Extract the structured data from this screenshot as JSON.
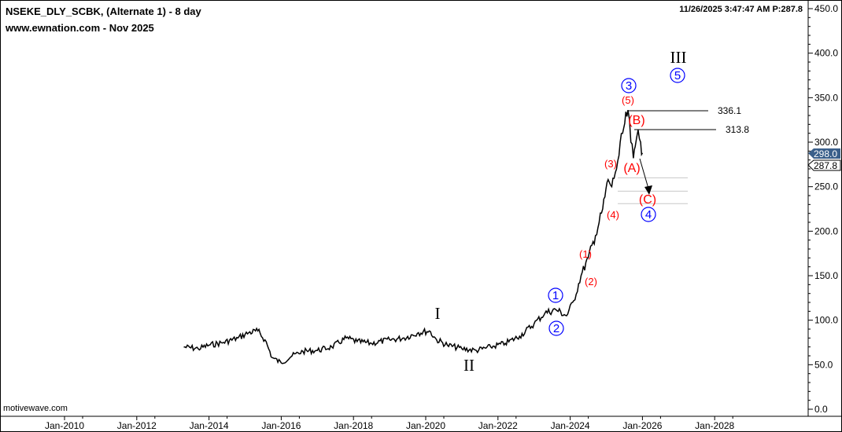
{
  "header": {
    "title": "NSEKE_DLY_SCBK, (Alternate 1) - 8 day",
    "subtitle": "www.ewnation.com  - Nov 2025",
    "timestamp_price": "11/26/2025 3:47:47 AM  P:287.8",
    "watermark": "motivewave.com"
  },
  "colors": {
    "price": "#000000",
    "wave_red": "#ff0000",
    "wave_blue": "#0000ff",
    "last_tag": "#3a5f8a",
    "fib": "#c8c8c8"
  },
  "chart_data": {
    "type": "line",
    "title": "NSEKE_DLY_SCBK, (Alternate 1) - 8 day",
    "y_axis": {
      "position": "right",
      "range": [
        0,
        450
      ],
      "ticks": [
        "0.0",
        "50.0",
        "100.0",
        "150.0",
        "200.0",
        "250.0",
        "300.0",
        "350.0",
        "400.0",
        "450.0"
      ]
    },
    "x_axis": {
      "range": [
        2009.5,
        2029.5
      ],
      "ticks": [
        "Jan-2010",
        "Jan-2012",
        "Jan-2014",
        "Jan-2016",
        "Jan-2018",
        "Jan-2020",
        "Jan-2022",
        "Jan-2024",
        "Jan-2026",
        "Jan-2028"
      ]
    },
    "grid": false,
    "series": [
      {
        "x": [
          2013.3,
          2013.7,
          2014.0,
          2014.4,
          2014.8,
          2015.1,
          2015.35,
          2015.55,
          2015.75,
          2016.0,
          2016.3,
          2016.6,
          2017.0,
          2017.4,
          2017.8,
          2018.1,
          2018.5,
          2019.0,
          2019.4,
          2019.8,
          2020.1,
          2020.3,
          2020.6,
          2021.0,
          2021.4,
          2021.8,
          2022.2,
          2022.6,
          2023.0,
          2023.3,
          2023.6,
          2023.9,
          2024.1,
          2024.3,
          2024.5,
          2024.7,
          2024.9,
          2025.05,
          2025.15,
          2025.25,
          2025.35,
          2025.45,
          2025.6,
          2025.68,
          2025.75,
          2025.8,
          2025.88,
          2025.95,
          2026.0
        ],
        "y": [
          70,
          68,
          72,
          75,
          80,
          86,
          88,
          78,
          58,
          52,
          60,
          65,
          66,
          70,
          80,
          76,
          74,
          78,
          80,
          86,
          88,
          78,
          72,
          68,
          66,
          70,
          74,
          82,
          96,
          108,
          112,
          105,
          122,
          150,
          170,
          195,
          225,
          258,
          250,
          266,
          285,
          310,
          336.1,
          300,
          282,
          295,
          313.8,
          300,
          287.8
        ]
      }
    ],
    "price_labels": {
      "last": "298.0",
      "current": "287.8",
      "high": "336.1",
      "high_b": "313.8"
    },
    "fib_levels": [
      260,
      245,
      231
    ],
    "wave_labels": {
      "I": "I",
      "II": "II",
      "III": "III",
      "c1": "1",
      "c2": "2",
      "c3": "3",
      "c4": "4",
      "c5": "5",
      "p1": "(1)",
      "p2": "(2)",
      "p3": "(3)",
      "p4": "(4)",
      "p5": "(5)",
      "A": "(A)",
      "B": "(B)",
      "C": "(C)"
    }
  }
}
